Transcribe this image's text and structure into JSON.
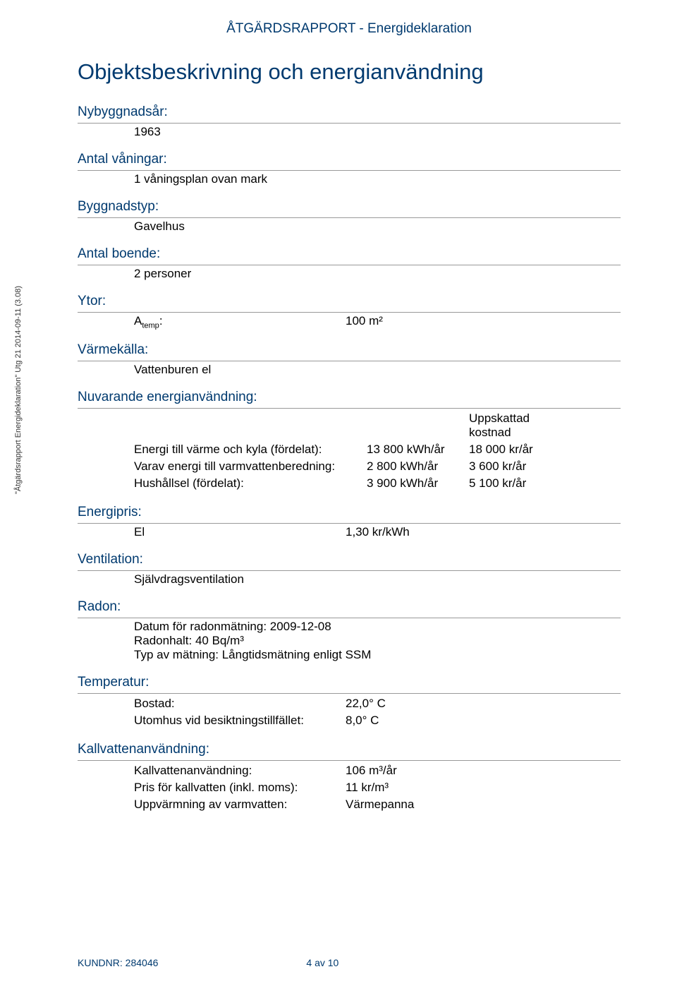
{
  "colors": {
    "heading": "#003a6f",
    "body_text": "#000000",
    "rule": "#999999",
    "background": "#ffffff"
  },
  "typography": {
    "heading_fontsize_pt": 19,
    "title_fontsize_pt": 31,
    "body_fontsize_pt": 17,
    "sidenote_fontsize_pt": 11,
    "footer_fontsize_pt": 14,
    "font_family": "Arial"
  },
  "header": {
    "doc_title": "ÅTGÄRDSRAPPORT - Energideklaration"
  },
  "main_title": "Objektsbeskrivning och energianvändning",
  "sections": {
    "nybyggnadsar": {
      "label": "Nybyggnadsår:",
      "value": "1963"
    },
    "antal_vaningar": {
      "label": "Antal våningar:",
      "value": "1 våningsplan ovan mark"
    },
    "byggnadstyp": {
      "label": "Byggnadstyp:",
      "value": "Gavelhus"
    },
    "antal_boende": {
      "label": "Antal boende:",
      "value": "2 personer"
    },
    "ytor": {
      "label": "Ytor:",
      "atemp_label": "Atemp:",
      "atemp_value": "100  m²"
    },
    "varmekalla": {
      "label": "Värmekälla:",
      "value": "Vattenburen el"
    },
    "nuvarande": {
      "label": "Nuvarande energianvändning:",
      "cost_header": "Uppskattad kostnad",
      "rows": [
        {
          "label": "Energi till värme och kyla (fördelat):",
          "value": "13 800 kWh/år",
          "cost": "18 000 kr/år"
        },
        {
          "label": "Varav energi till varmvattenberedning:",
          "value": "2 800 kWh/år",
          "cost": "3 600 kr/år"
        },
        {
          "label": "Hushållsel (fördelat):",
          "value": "3 900 kWh/år",
          "cost": "5 100 kr/år"
        }
      ]
    },
    "energipris": {
      "label": "Energipris:",
      "item": "El",
      "value": "1,30 kr/kWh"
    },
    "ventilation": {
      "label": "Ventilation:",
      "value": "Självdragsventilation"
    },
    "radon": {
      "label": "Radon:",
      "line1": "Datum för radonmätning: 2009-12-08",
      "line2": "Radonhalt: 40 Bq/m³",
      "line3": "Typ av mätning: Långtidsmätning enligt SSM"
    },
    "temperatur": {
      "label": "Temperatur:",
      "rows": [
        {
          "label": "Bostad:",
          "value": "22,0° C"
        },
        {
          "label": "Utomhus vid besiktningstillfället:",
          "value": "8,0° C"
        }
      ]
    },
    "kallvatten": {
      "label": "Kallvattenanvändning:",
      "rows": [
        {
          "label": "Kallvattenanvändning:",
          "value": "106 m³/år"
        },
        {
          "label": "Pris för kallvatten (inkl. moms):",
          "value": "11 kr/m³"
        },
        {
          "label": "Uppvärmning av varmvatten:",
          "value": "Värmepanna"
        }
      ]
    }
  },
  "sidenote": "\"Åtgärdsrapport Energideklaration\" Utg 21 2014-09-11 (3.08)",
  "footer": {
    "kundnr": "KUNDNR: 284046",
    "page": "4 av 10"
  }
}
